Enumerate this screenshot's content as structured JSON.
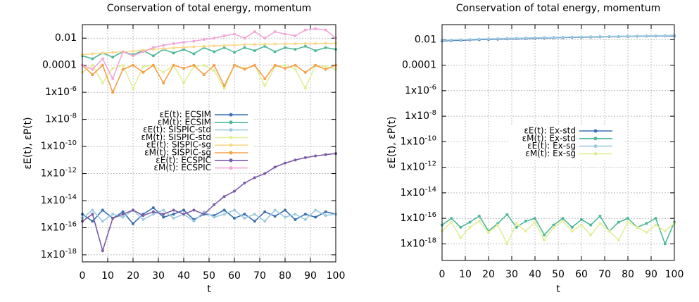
{
  "chart_data": [
    {
      "type": "line",
      "title": "Conservation of total energy, momentum",
      "x_label": "t",
      "y_label": "εE(t), εP(t)",
      "log_scale": true,
      "grid": true,
      "x": [
        0,
        4,
        8,
        12,
        16,
        20,
        24,
        28,
        32,
        36,
        40,
        44,
        48,
        52,
        56,
        60,
        64,
        68,
        72,
        76,
        80,
        84,
        88,
        92,
        96,
        100
      ],
      "xlim": [
        0,
        100
      ],
      "xticks": [
        0,
        10,
        20,
        30,
        40,
        50,
        60,
        70,
        80,
        90,
        100
      ],
      "ylim": [
        3e-19,
        0.1
      ],
      "yticks": [
        0.01,
        0.0001,
        {
          "value": 1e-06,
          "label": "1x10-6"
        },
        {
          "value": 1e-08,
          "label": "1x10-8"
        },
        {
          "value": 1e-10,
          "label": "1x10-10"
        },
        {
          "value": 1e-12,
          "label": "1x10-12"
        },
        {
          "value": 1e-14,
          "label": "1x10-14"
        },
        {
          "value": 1e-16,
          "label": "1x10-16"
        },
        {
          "value": 1e-18,
          "label": "1x10-18"
        }
      ],
      "series": [
        {
          "name": "εE(t): ECSIM",
          "color": "#3a6fb0",
          "values": [
            1e-15,
            3e-16,
            2e-15,
            5e-16,
            1.5e-15,
            2e-16,
            1e-15,
            3e-15,
            6e-16,
            1e-15,
            2e-15,
            4e-16,
            1e-15,
            8e-16,
            2e-15,
            5e-16,
            1e-15,
            3e-16,
            1.5e-15,
            7e-16,
            2e-15,
            4e-16,
            1e-15,
            6e-16,
            1.5e-15,
            1e-15
          ]
        },
        {
          "name": "εM(t): ECSIM",
          "color": "#4fb89a",
          "values": [
            0.0005,
            0.0003,
            0.0008,
            0.0004,
            0.001,
            0.0006,
            0.0012,
            0.0005,
            0.0015,
            0.0008,
            0.0015,
            0.0007,
            0.002,
            0.001,
            0.002,
            0.0009,
            0.002,
            0.0012,
            0.0025,
            0.001,
            0.002,
            0.0015,
            0.0025,
            0.0012,
            0.002,
            0.0015
          ]
        },
        {
          "name": "εE(t): SISPIC-std",
          "color": "#9ecae1",
          "values": [
            5e-16,
            2e-15,
            3e-16,
            1e-15,
            6e-16,
            2e-15,
            4e-16,
            1e-15,
            2e-15,
            5e-16,
            1e-15,
            3e-16,
            1.5e-15,
            6e-16,
            1e-15,
            2e-15,
            5e-16,
            1e-15,
            3e-16,
            2e-15,
            6e-16,
            1e-15,
            4e-16,
            2e-15,
            8e-16,
            1e-15
          ]
        },
        {
          "name": "εM(t): SISPIC-std",
          "color": "#e3ee9a",
          "values": [
            3e-05,
            0.0001,
            5e-06,
            6e-05,
            0.0001,
            2e-06,
            8e-05,
            0.0001,
            3e-05,
            0.0001,
            5e-06,
            8e-05,
            0.0001,
            4e-05,
            2e-06,
            0.0001,
            6e-05,
            0.0001,
            3e-06,
            8e-05,
            0.0001,
            5e-05,
            2e-06,
            0.0001,
            8e-05,
            5e-05
          ]
        },
        {
          "name": "εE(t): SISPIC-sg",
          "color": "#fcd98a",
          "values": [
            0.0006,
            0.0007,
            0.0008,
            0.0009,
            0.001,
            0.0011,
            0.0013,
            0.0015,
            0.0017,
            0.0019,
            0.0021,
            0.0023,
            0.0025,
            0.0027,
            0.0029,
            0.0031,
            0.0033,
            0.0035,
            0.0036,
            0.0037,
            0.0038,
            0.0039,
            0.004,
            0.004,
            0.0041,
            0.0042
          ]
        },
        {
          "name": "εM(t): SISPIC-sg",
          "color": "#f5a04a",
          "values": [
            0.0001,
            2e-05,
            0.0001,
            1e-06,
            5e-05,
            0.0001,
            3e-05,
            0.0001,
            5e-06,
            0.0001,
            6e-05,
            0.0001,
            2e-05,
            0.0001,
            3e-06,
            0.0001,
            5e-05,
            0.0001,
            1e-05,
            0.0001,
            6e-05,
            0.0001,
            3e-05,
            0.0001,
            5e-05,
            0.0001
          ]
        },
        {
          "name": "εE(t): ECSPIC",
          "color": "#7b5ba8",
          "values": [
            3e-16,
            1e-15,
            2e-18,
            5e-16,
            1e-15,
            2e-15,
            8e-16,
            1.5e-15,
            1e-15,
            2e-15,
            1e-15,
            2e-15,
            1e-15,
            5e-15,
            2e-14,
            5e-14,
            2e-13,
            5e-13,
            1e-12,
            3e-12,
            6e-12,
            1e-11,
            1.5e-11,
            2e-11,
            2.5e-11,
            3e-11
          ]
        },
        {
          "name": "εM(t): ECSPIC",
          "color": "#f2a8d6",
          "values": [
            0.0001,
            5e-05,
            0.0003,
            1e-05,
            0.001,
            0.0005,
            0.001,
            0.002,
            0.003,
            0.004,
            0.005,
            0.006,
            0.008,
            0.01,
            0.015,
            0.02,
            0.01,
            0.03,
            0.01,
            0.03,
            0.02,
            0.015,
            0.04,
            0.05,
            0.04,
            0.01
          ]
        }
      ]
    },
    {
      "type": "line",
      "title": "Conservation of total energy, momentum",
      "x_label": "t",
      "y_label": "εE(t), εP(t)",
      "log_scale": true,
      "grid": true,
      "x": [
        0,
        4,
        8,
        12,
        16,
        20,
        24,
        28,
        32,
        36,
        40,
        44,
        48,
        52,
        56,
        60,
        64,
        68,
        72,
        76,
        80,
        84,
        88,
        92,
        96,
        100
      ],
      "xlim": [
        0,
        100
      ],
      "xticks": [
        0,
        10,
        20,
        30,
        40,
        50,
        60,
        70,
        80,
        90,
        100
      ],
      "ylim": [
        5e-20,
        0.15
      ],
      "yticks": [
        0.01,
        0.0001,
        {
          "value": 1e-06,
          "label": "1x10-6"
        },
        {
          "value": 1e-08,
          "label": "1x10-8"
        },
        {
          "value": 1e-10,
          "label": "1x10-10"
        },
        {
          "value": 1e-12,
          "label": "1x10-12"
        },
        {
          "value": 1e-14,
          "label": "1x10-14"
        },
        {
          "value": 1e-16,
          "label": "1x10-16"
        },
        {
          "value": 1e-18,
          "label": "1x10-18"
        }
      ],
      "series": [
        {
          "name": "εE(t): Ex-std",
          "color": "#3a6fb0",
          "values": [
            0.008,
            0.0085,
            0.009,
            0.0095,
            0.01,
            0.0105,
            0.011,
            0.0115,
            0.012,
            0.0125,
            0.013,
            0.0135,
            0.014,
            0.0145,
            0.015,
            0.0155,
            0.016,
            0.0165,
            0.017,
            0.0175,
            0.018,
            0.0185,
            0.019,
            0.0195,
            0.02,
            0.02
          ]
        },
        {
          "name": "εM(t): Ex-std",
          "color": "#4fb89a",
          "values": [
            3e-17,
            1e-16,
            2e-17,
            5e-17,
            1.5e-16,
            1e-17,
            4e-17,
            2e-16,
            2e-17,
            6e-17,
            1e-16,
            5e-18,
            3e-17,
            1e-16,
            2e-17,
            8e-17,
            3e-17,
            1.5e-16,
            1e-17,
            5e-17,
            1e-16,
            2e-17,
            4e-17,
            1e-16,
            1e-18,
            5e-17
          ]
        },
        {
          "name": "εE(t): Ex-sg",
          "color": "#9ecae1",
          "values": [
            0.009,
            0.0095,
            0.01,
            0.0105,
            0.011,
            0.0115,
            0.012,
            0.0125,
            0.013,
            0.0135,
            0.014,
            0.0145,
            0.015,
            0.0155,
            0.016,
            0.0165,
            0.017,
            0.0175,
            0.018,
            0.0185,
            0.019,
            0.0195,
            0.02,
            0.0205,
            0.021,
            0.022
          ]
        },
        {
          "name": "εM(t): Ex-sg",
          "color": "#e3ee9a",
          "values": [
            1e-17,
            5e-17,
            3e-18,
            2e-17,
            6e-17,
            8e-18,
            3e-17,
            1e-18,
            4e-17,
            1e-17,
            5e-17,
            2e-18,
            2e-17,
            6e-17,
            1e-17,
            3e-17,
            5e-18,
            4e-17,
            1e-17,
            2e-18,
            5e-17,
            2e-17,
            8e-18,
            3e-17,
            1e-17,
            4e-17
          ]
        }
      ]
    }
  ]
}
